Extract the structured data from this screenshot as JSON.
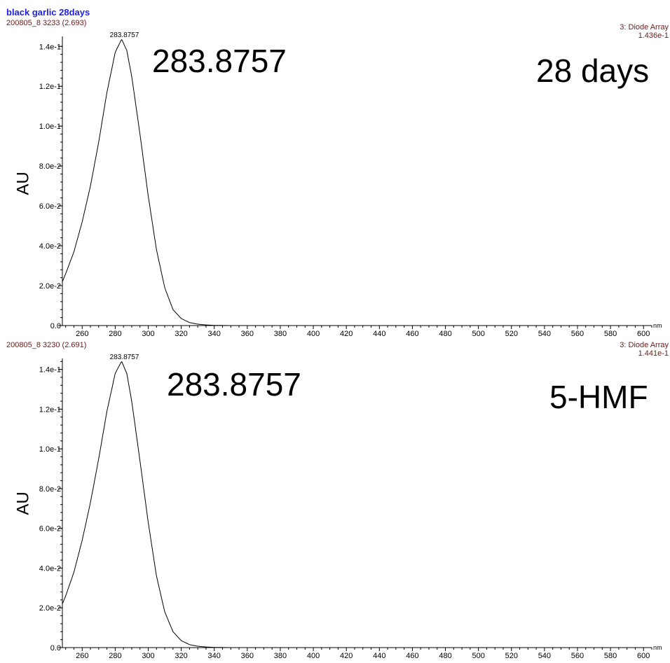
{
  "page_title": "black garlic 28days",
  "panels": [
    {
      "header_left": "200805_8 3233 (2.693)",
      "header_right_1": "3: Diode Array",
      "header_right_2": "1.436e-1",
      "ylabel": "AU",
      "peak_label": "283.8757",
      "annotation_value": "283.8757",
      "annotation_text": "28 days"
    },
    {
      "header_left": "200805_8 3230 (2.691)",
      "header_right_1": "3: Diode Array",
      "header_right_2": "1.441e-1",
      "ylabel": "AU",
      "peak_label": "283.8757",
      "annotation_value": "283.8757",
      "annotation_text": "5-HMF"
    }
  ],
  "chart_data": [
    {
      "type": "line",
      "title": "",
      "xlabel": "nm",
      "ylabel": "AU",
      "xlim": [
        248,
        605
      ],
      "ylim": [
        0,
        0.1436
      ],
      "x_ticks": [
        260,
        280,
        300,
        320,
        340,
        360,
        380,
        400,
        420,
        440,
        460,
        480,
        500,
        520,
        540,
        560,
        580,
        600
      ],
      "y_ticks": [
        0.0,
        0.02,
        0.04,
        0.06,
        0.08,
        0.1,
        0.12,
        0.14
      ],
      "y_tick_labels": [
        "0.0",
        "2.0e-2",
        "4.0e-2",
        "6.0e-2",
        "8.0e-2",
        "1.0e-1",
        "1.2e-1",
        "1.4e-1"
      ],
      "peak": {
        "x": 283.8757,
        "y": 0.1436,
        "label": "283.8757"
      },
      "series": [
        {
          "x": [
            248,
            250,
            255,
            260,
            265,
            270,
            275,
            280,
            283.8757,
            287,
            290,
            295,
            300,
            305,
            310,
            315,
            320,
            325,
            330,
            335,
            340,
            350,
            360,
            400,
            500,
            605
          ],
          "y": [
            0.022,
            0.026,
            0.037,
            0.052,
            0.07,
            0.092,
            0.117,
            0.137,
            0.1436,
            0.138,
            0.125,
            0.096,
            0.065,
            0.038,
            0.019,
            0.008,
            0.0035,
            0.0015,
            0.0007,
            0.0003,
            0.0001,
            0.0,
            0.0,
            0.0,
            0.0,
            0.0
          ]
        }
      ]
    },
    {
      "type": "line",
      "title": "",
      "xlabel": "nm",
      "ylabel": "AU",
      "xlim": [
        248,
        605
      ],
      "ylim": [
        0,
        0.1441
      ],
      "x_ticks": [
        260,
        280,
        300,
        320,
        340,
        360,
        380,
        400,
        420,
        440,
        460,
        480,
        500,
        520,
        540,
        560,
        580,
        600
      ],
      "y_ticks": [
        0.0,
        0.02,
        0.04,
        0.06,
        0.08,
        0.1,
        0.12,
        0.14
      ],
      "y_tick_labels": [
        "0.0",
        "2.0e-2",
        "4.0e-2",
        "6.0e-2",
        "8.0e-2",
        "1.0e-1",
        "1.2e-1",
        "1.4e-1"
      ],
      "peak": {
        "x": 283.8757,
        "y": 0.1441,
        "label": "283.8757"
      },
      "series": [
        {
          "x": [
            248,
            250,
            255,
            260,
            265,
            270,
            275,
            280,
            283.8757,
            287,
            290,
            295,
            300,
            305,
            310,
            315,
            320,
            325,
            330,
            335,
            340,
            350,
            360,
            400,
            500,
            605
          ],
          "y": [
            0.022,
            0.026,
            0.038,
            0.054,
            0.073,
            0.095,
            0.119,
            0.138,
            0.1441,
            0.138,
            0.124,
            0.094,
            0.063,
            0.036,
            0.018,
            0.008,
            0.0035,
            0.0015,
            0.0007,
            0.0003,
            0.0001,
            0.0,
            0.0,
            0.0,
            0.0,
            0.0
          ]
        }
      ]
    }
  ]
}
